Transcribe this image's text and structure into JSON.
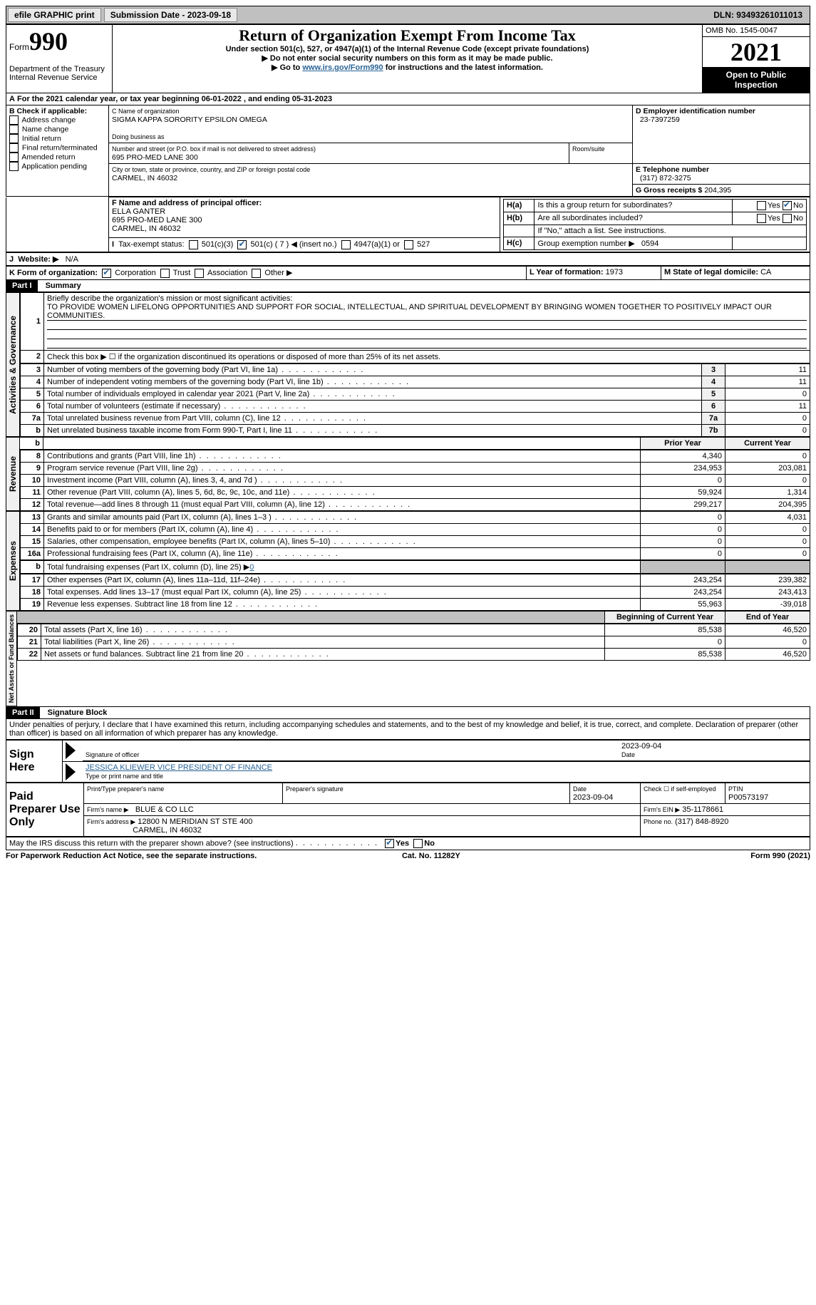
{
  "topbar": {
    "efile": "efile GRAPHIC print",
    "submission": "Submission Date - 2023-09-18",
    "dln": "DLN: 93493261011013"
  },
  "header": {
    "form_word": "Form",
    "form_no": "990",
    "dept": "Department of the Treasury",
    "irs": "Internal Revenue Service",
    "title": "Return of Organization Exempt From Income Tax",
    "sub1": "Under section 501(c), 527, or 4947(a)(1) of the Internal Revenue Code (except private foundations)",
    "sub2": "Do not enter social security numbers on this form as it may be made public.",
    "sub3_a": "Go to ",
    "sub3_link": "www.irs.gov/Form990",
    "sub3_b": " for instructions and the latest information.",
    "omb": "OMB No. 1545-0047",
    "year": "2021",
    "open": "Open to Public Inspection"
  },
  "A": {
    "text_a": "For the 2021 calendar year, or tax year beginning ",
    "begin": "06-01-2022",
    "text_b": " , and ending ",
    "end": "05-31-2023"
  },
  "B": {
    "label": "B Check if applicable:",
    "opts": [
      "Address change",
      "Name change",
      "Initial return",
      "Final return/terminated",
      "Amended return",
      "Application pending"
    ]
  },
  "C": {
    "name_lbl": "C Name of organization",
    "name": "SIGMA KAPPA SORORITY EPSILON OMEGA",
    "dba_lbl": "Doing business as",
    "street_lbl": "Number and street (or P.O. box if mail is not delivered to street address)",
    "room_lbl": "Room/suite",
    "street": "695 PRO-MED LANE 300",
    "city_lbl": "City or town, state or province, country, and ZIP or foreign postal code",
    "city": "CARMEL, IN  46032"
  },
  "D": {
    "lbl": "D Employer identification number",
    "val": "23-7397259"
  },
  "E": {
    "lbl": "E Telephone number",
    "val": "(317) 872-3275"
  },
  "G": {
    "lbl": "G Gross receipts $",
    "val": "204,395"
  },
  "F": {
    "lbl": "F  Name and address of principal officer:",
    "name": "ELLA GANTER",
    "street": "695 PRO-MED LANE 300",
    "city": "CARMEL, IN  46032"
  },
  "H": {
    "a": "Is this a group return for subordinates?",
    "b": "Are all subordinates included?",
    "b_note": "If \"No,\" attach a list. See instructions.",
    "c_lbl": "Group exemption number ▶",
    "c_val": "0594",
    "yes": "Yes",
    "no": "No"
  },
  "I": {
    "lbl": "Tax-exempt status:",
    "o1": "501(c)(3)",
    "o2a": "501(c) (",
    "o2n": "7",
    "o2b": ") ◀ (insert no.)",
    "o3": "4947(a)(1) or",
    "o4": "527"
  },
  "J": {
    "lbl": "Website: ▶",
    "val": "N/A"
  },
  "K": {
    "lbl": "K Form of organization:",
    "o1": "Corporation",
    "o2": "Trust",
    "o3": "Association",
    "o4": "Other ▶"
  },
  "L": {
    "lbl": "L Year of formation:",
    "val": "1973"
  },
  "M": {
    "lbl": "M State of legal domicile:",
    "val": "CA"
  },
  "part1": {
    "bar": "Part I",
    "title": "Summary"
  },
  "summary": {
    "l1_lbl": "Briefly describe the organization's mission or most significant activities:",
    "l1_val": "TO PROVIDE WOMEN LIFELONG OPPORTUNITIES AND SUPPORT FOR SOCIAL, INTELLECTUAL, AND SPIRITUAL DEVELOPMENT BY BRINGING WOMEN TOGETHER TO POSITIVELY IMPACT OUR COMMUNITIES.",
    "l2": "Check this box ▶ ☐ if the organization discontinued its operations or disposed of more than 25% of its net assets.",
    "rows_ag": [
      {
        "n": "3",
        "t": "Number of voting members of the governing body (Part VI, line 1a)",
        "b": "3",
        "v": "11"
      },
      {
        "n": "4",
        "t": "Number of independent voting members of the governing body (Part VI, line 1b)",
        "b": "4",
        "v": "11"
      },
      {
        "n": "5",
        "t": "Total number of individuals employed in calendar year 2021 (Part V, line 2a)",
        "b": "5",
        "v": "0"
      },
      {
        "n": "6",
        "t": "Total number of volunteers (estimate if necessary)",
        "b": "6",
        "v": "11"
      },
      {
        "n": "7a",
        "t": "Total unrelated business revenue from Part VIII, column (C), line 12",
        "b": "7a",
        "v": "0"
      },
      {
        "n": "b",
        "t": "Net unrelated business taxable income from Form 990-T, Part I, line 11",
        "b": "7b",
        "v": "0"
      }
    ],
    "hdr_prior": "Prior Year",
    "hdr_curr": "Current Year",
    "rev": [
      {
        "n": "8",
        "t": "Contributions and grants (Part VIII, line 1h)",
        "p": "4,340",
        "c": "0"
      },
      {
        "n": "9",
        "t": "Program service revenue (Part VIII, line 2g)",
        "p": "234,953",
        "c": "203,081"
      },
      {
        "n": "10",
        "t": "Investment income (Part VIII, column (A), lines 3, 4, and 7d )",
        "p": "0",
        "c": "0"
      },
      {
        "n": "11",
        "t": "Other revenue (Part VIII, column (A), lines 5, 6d, 8c, 9c, 10c, and 11e)",
        "p": "59,924",
        "c": "1,314"
      },
      {
        "n": "12",
        "t": "Total revenue—add lines 8 through 11 (must equal Part VIII, column (A), line 12)",
        "p": "299,217",
        "c": "204,395"
      }
    ],
    "exp": [
      {
        "n": "13",
        "t": "Grants and similar amounts paid (Part IX, column (A), lines 1–3 )",
        "p": "0",
        "c": "4,031"
      },
      {
        "n": "14",
        "t": "Benefits paid to or for members (Part IX, column (A), line 4)",
        "p": "0",
        "c": "0"
      },
      {
        "n": "15",
        "t": "Salaries, other compensation, employee benefits (Part IX, column (A), lines 5–10)",
        "p": "0",
        "c": "0"
      },
      {
        "n": "16a",
        "t": "Professional fundraising fees (Part IX, column (A), line 11e)",
        "p": "0",
        "c": "0"
      }
    ],
    "l16b_a": "Total fundraising expenses (Part IX, column (D), line 25) ▶",
    "l16b_v": "0",
    "exp2": [
      {
        "n": "17",
        "t": "Other expenses (Part IX, column (A), lines 11a–11d, 11f–24e)",
        "p": "243,254",
        "c": "239,382"
      },
      {
        "n": "18",
        "t": "Total expenses. Add lines 13–17 (must equal Part IX, column (A), line 25)",
        "p": "243,254",
        "c": "243,413"
      },
      {
        "n": "19",
        "t": "Revenue less expenses. Subtract line 18 from line 12",
        "p": "55,963",
        "c": "-39,018"
      }
    ],
    "hdr_boy": "Beginning of Current Year",
    "hdr_eoy": "End of Year",
    "na": [
      {
        "n": "20",
        "t": "Total assets (Part X, line 16)",
        "p": "85,538",
        "c": "46,520"
      },
      {
        "n": "21",
        "t": "Total liabilities (Part X, line 26)",
        "p": "0",
        "c": "0"
      },
      {
        "n": "22",
        "t": "Net assets or fund balances. Subtract line 21 from line 20",
        "p": "85,538",
        "c": "46,520"
      }
    ],
    "side_ag": "Activities & Governance",
    "side_rev": "Revenue",
    "side_exp": "Expenses",
    "side_na": "Net Assets or Fund Balances"
  },
  "part2": {
    "bar": "Part II",
    "title": "Signature Block"
  },
  "sig": {
    "decl": "Under penalties of perjury, I declare that I have examined this return, including accompanying schedules and statements, and to the best of my knowledge and belief, it is true, correct, and complete. Declaration of preparer (other than officer) is based on all information of which preparer has any knowledge.",
    "sign_here": "Sign Here",
    "sig_officer": "Signature of officer",
    "date1": "2023-09-04",
    "date_lbl": "Date",
    "name": "JESSICA KLIEWER  VICE PRESIDENT OF FINANCE",
    "name_lbl": "Type or print name and title",
    "paid": "Paid Preparer Use Only",
    "pt_name_lbl": "Print/Type preparer's name",
    "pt_sig_lbl": "Preparer's signature",
    "pt_date_lbl": "Date",
    "pt_date": "2023-09-04",
    "pt_self": "Check ☐ if self-employed",
    "ptin_lbl": "PTIN",
    "ptin": "P00573197",
    "firm_name_lbl": "Firm's name    ▶",
    "firm_name": "BLUE & CO LLC",
    "firm_ein_lbl": "Firm's EIN ▶",
    "firm_ein": "35-1178661",
    "firm_addr_lbl": "Firm's address ▶",
    "firm_addr1": "12800 N MERIDIAN ST STE 400",
    "firm_addr2": "CARMEL, IN  46032",
    "phone_lbl": "Phone no.",
    "phone": "(317) 848-8920",
    "discuss": "May the IRS discuss this return with the preparer shown above? (see instructions)"
  },
  "footer": {
    "l": "For Paperwork Reduction Act Notice, see the separate instructions.",
    "m": "Cat. No. 11282Y",
    "r": "Form 990 (2021)"
  }
}
